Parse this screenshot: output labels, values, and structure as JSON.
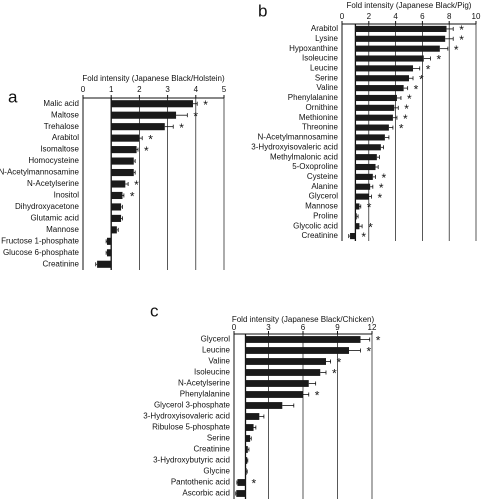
{
  "chart_data": [
    {
      "type": "barh",
      "panel_label": "a",
      "title": "Fold intensity (Japanese Black/Holstein)",
      "categories": [
        "Malic acid",
        "Maltose",
        "Trehalose",
        "Arabitol",
        "Isomaltose",
        "Homocysteine",
        "N-Acetylmannosamine",
        "N-Acetylserine",
        "Inositol",
        "Dihydroxyacetone",
        "Glutamic acid",
        "Mannose",
        "Fructose 1-phosphate",
        "Glucose 6-phosphate",
        "Creatinine"
      ],
      "values": [
        3.9,
        3.3,
        2.9,
        2.0,
        1.9,
        1.8,
        1.8,
        1.5,
        1.4,
        1.35,
        1.35,
        1.2,
        0.85,
        0.85,
        0.5
      ],
      "errors": [
        0.15,
        0.4,
        0.3,
        0.1,
        0.05,
        0.05,
        0.05,
        0.1,
        0.05,
        0.05,
        0.05,
        0.05,
        0.03,
        0.03,
        0.05
      ],
      "significance": [
        "*",
        "*",
        "*",
        "*",
        "*",
        null,
        null,
        "*",
        "*",
        null,
        null,
        null,
        null,
        null,
        null
      ],
      "xlim": [
        0,
        5
      ],
      "xticks": [
        0,
        1,
        2,
        3,
        4,
        5
      ],
      "baseline": 1,
      "grid": true,
      "color": "#1a1a1a"
    },
    {
      "type": "barh",
      "panel_label": "b",
      "title": "Fold intensity (Japanese Black/Pig)",
      "categories": [
        "Arabitol",
        "Lysine",
        "Hypoxanthine",
        "Isoleucine",
        "Leucine",
        "Serine",
        "Valine",
        "Phenylalanine",
        "Ornithine",
        "Methionine",
        "Threonine",
        "N-Acetylmannosamine",
        "3-Hydroxyisovaleric acid",
        "Methylmalonic acid",
        "5-Oxoproline",
        "Cysteine",
        "Alanine",
        "Glycerol",
        "Mannose",
        "Proline",
        "Glycolic acid",
        "Creatinine"
      ],
      "values": [
        7.8,
        7.7,
        7.3,
        6.1,
        5.3,
        5.0,
        4.6,
        4.1,
        3.9,
        3.8,
        3.5,
        3.2,
        2.9,
        2.6,
        2.5,
        2.3,
        2.1,
        2.0,
        1.3,
        1.1,
        1.3,
        0.6
      ],
      "errors": [
        0.5,
        0.6,
        0.6,
        0.5,
        0.5,
        0.3,
        0.3,
        0.3,
        0.3,
        0.3,
        0.3,
        0.3,
        0.2,
        0.2,
        0.2,
        0.2,
        0.2,
        0.2,
        0.1,
        0.1,
        0.2,
        0.1
      ],
      "significance": [
        "*",
        "*",
        "*",
        "*",
        "*",
        "*",
        "*",
        "*",
        "*",
        "*",
        "*",
        null,
        null,
        null,
        null,
        "*",
        "*",
        "*",
        "*",
        null,
        "*",
        "*"
      ],
      "xlim": [
        0,
        10
      ],
      "xticks": [
        0,
        2,
        4,
        6,
        8,
        10
      ],
      "baseline": 1,
      "grid": true,
      "color": "#1a1a1a"
    },
    {
      "type": "barh",
      "panel_label": "c",
      "title": "Fold intensity (Japanese Black/Chicken)",
      "categories": [
        "Glycerol",
        "Leucine",
        "Valine",
        "Isoleucine",
        "N-Acetylserine",
        "Phenylalanine",
        "Glycerol 3-phosphate",
        "3-Hydroxyisovaleric acid",
        "Ribulose 5-phosphate",
        "Serine",
        "Creatinine",
        "3-Hydroxybutyric acid",
        "Glycine",
        "Pantothenic acid",
        "Ascorbic acid"
      ],
      "values": [
        11.0,
        10.0,
        8.0,
        7.5,
        6.5,
        6.0,
        4.2,
        2.2,
        1.7,
        1.4,
        1.2,
        1.15,
        1.1,
        0.3,
        0.2
      ],
      "errors": [
        0.8,
        1.0,
        0.4,
        0.5,
        0.6,
        0.5,
        1.0,
        0.4,
        0.2,
        0.1,
        0.1,
        0.05,
        0.05,
        0.05,
        0.05
      ],
      "significance": [
        "*",
        "*",
        "*",
        "*",
        null,
        "*",
        null,
        null,
        null,
        null,
        null,
        null,
        null,
        "*",
        null
      ],
      "xlim": [
        0,
        12
      ],
      "xticks": [
        0,
        3,
        6,
        9,
        12
      ],
      "baseline": 1,
      "grid": true,
      "color": "#1a1a1a"
    }
  ]
}
